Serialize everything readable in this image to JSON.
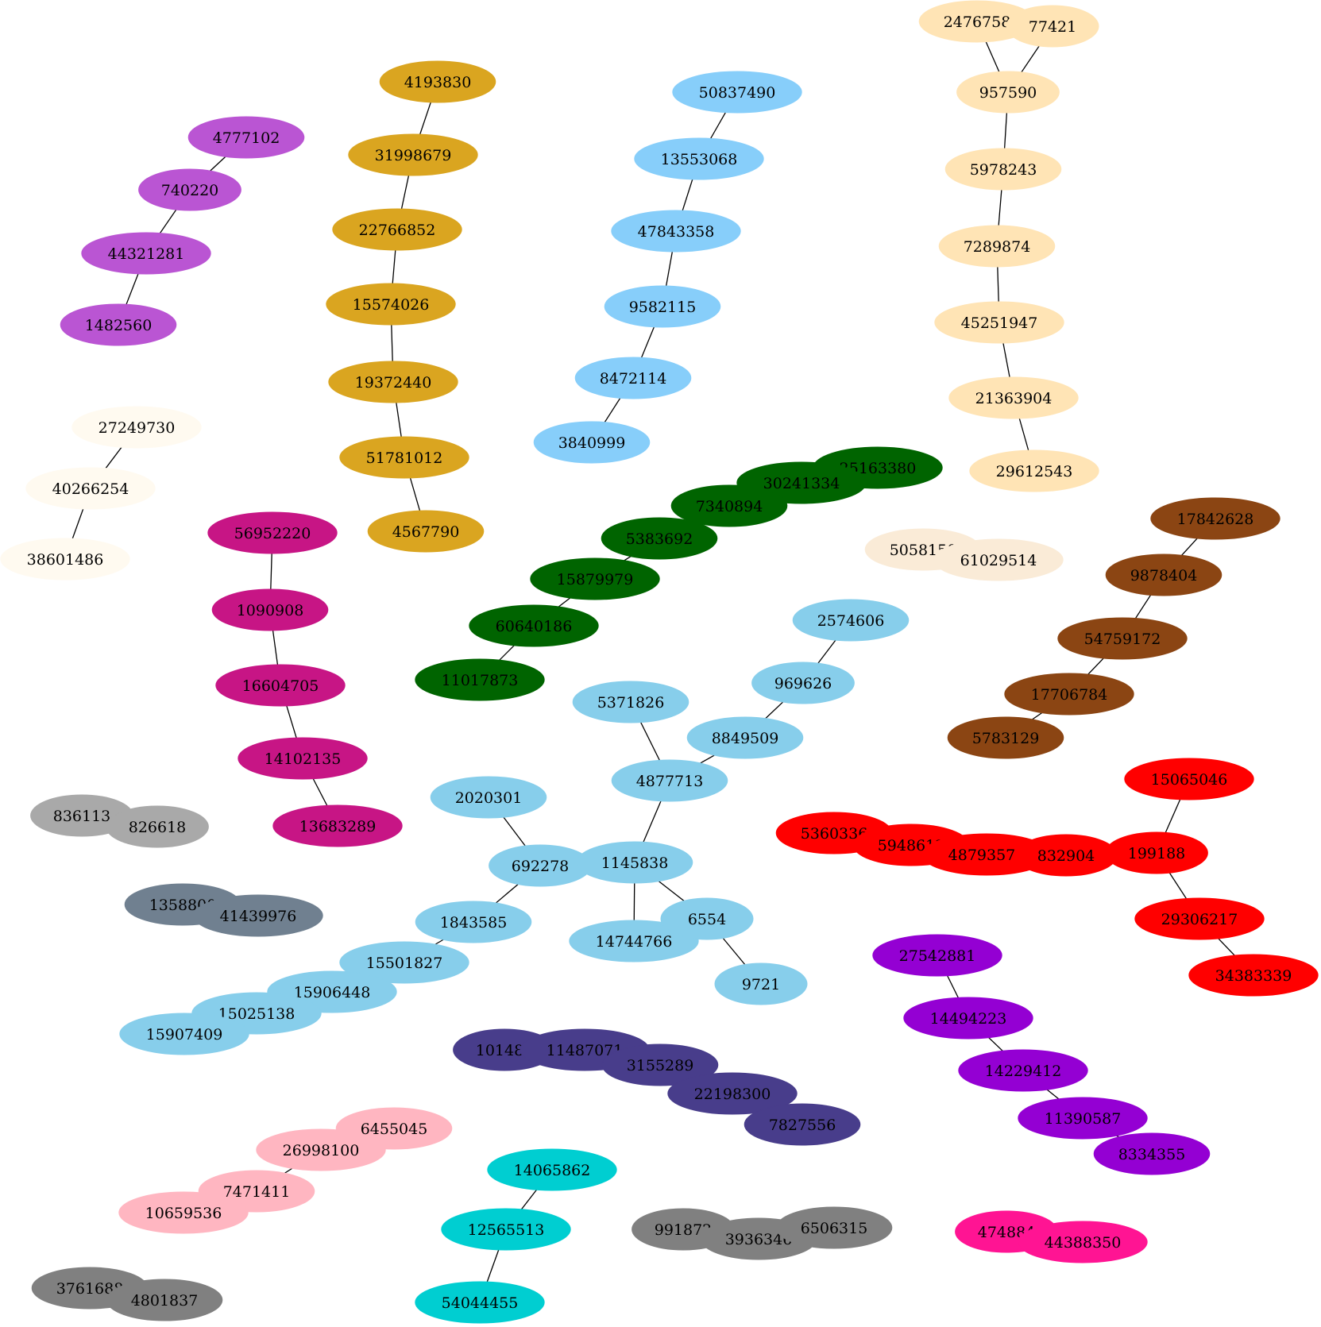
{
  "graph": {
    "components": [
      {
        "color": "#ba55d3",
        "nodes": [
          "4777102",
          "740220",
          "44321281",
          "1482560"
        ]
      },
      {
        "color": "#daa520",
        "nodes": [
          "4193830",
          "31998679",
          "22766852",
          "15574026",
          "19372440",
          "51781012",
          "4567790"
        ]
      },
      {
        "color": "#87cefa",
        "nodes": [
          "50837490",
          "13553068",
          "47843358",
          "9582115",
          "8472114",
          "3840999"
        ]
      },
      {
        "color": "#ffe4b5",
        "nodes": [
          "2476758",
          "77421",
          "957590",
          "5978243",
          "7289874",
          "45251947",
          "21363904",
          "29612543"
        ]
      },
      {
        "color": "#fffaf0",
        "nodes": [
          "27249730",
          "40266254",
          "38601486"
        ]
      },
      {
        "color": "#c71585",
        "nodes": [
          "56952220",
          "1090908",
          "16604705",
          "14102135",
          "13683289"
        ]
      },
      {
        "color": "#006400",
        "nodes": [
          "25163380",
          "30241334",
          "7340894",
          "5383692",
          "15879979",
          "60640186",
          "11017873"
        ]
      },
      {
        "color": "#faebd7",
        "nodes": [
          "5058150",
          "61029514"
        ]
      },
      {
        "color": "#8b4513",
        "nodes": [
          "17842628",
          "9878404",
          "54759172",
          "17706784",
          "5783129"
        ]
      },
      {
        "color": "#87ceeb",
        "nodes": [
          "2574606",
          "969626",
          "8849509",
          "5371826",
          "4877713",
          "2020301",
          "692278",
          "1145838",
          "1843585",
          "14744766",
          "6554",
          "9721",
          "15501827",
          "15906448",
          "15025138",
          "15907409"
        ]
      },
      {
        "color": "#a9a9a9",
        "nodes": [
          "836113",
          "826618"
        ]
      },
      {
        "color": "#708090",
        "nodes": [
          "1358800",
          "41439976"
        ]
      },
      {
        "color": "#ff0000",
        "nodes": [
          "15065046",
          "5360336",
          "5948612",
          "48793574",
          "832904",
          "199188",
          "29306217",
          "34383339"
        ]
      },
      {
        "color": "#9400d3",
        "nodes": [
          "27542881",
          "14494223",
          "14229412",
          "11390587",
          "8334355"
        ]
      },
      {
        "color": "#483d8b",
        "nodes": [
          "101485",
          "11487071",
          "3155289",
          "22198300",
          "7827556"
        ]
      },
      {
        "color": "#ffb6c1",
        "nodes": [
          "6455045",
          "26998100",
          "7471411",
          "10659536"
        ]
      },
      {
        "color": "#00ced1",
        "nodes": [
          "14065862",
          "12565513",
          "54044455"
        ]
      },
      {
        "color": "#808080",
        "nodes": [
          "991872",
          "3936346",
          "6506315",
          "3761688",
          "4801837"
        ]
      },
      {
        "color": "#ff1493",
        "nodes": [
          "474884",
          "44388350"
        ]
      }
    ],
    "edges": [
      [
        "4777102",
        "740220"
      ],
      [
        "740220",
        "44321281"
      ],
      [
        "44321281",
        "1482560"
      ],
      [
        "4193830",
        "31998679"
      ],
      [
        "31998679",
        "22766852"
      ],
      [
        "22766852",
        "15574026"
      ],
      [
        "15574026",
        "19372440"
      ],
      [
        "19372440",
        "51781012"
      ],
      [
        "51781012",
        "4567790"
      ],
      [
        "50837490",
        "13553068"
      ],
      [
        "13553068",
        "47843358"
      ],
      [
        "47843358",
        "9582115"
      ],
      [
        "9582115",
        "8472114"
      ],
      [
        "8472114",
        "3840999"
      ],
      [
        "2476758",
        "957590"
      ],
      [
        "77421",
        "957590"
      ],
      [
        "957590",
        "5978243"
      ],
      [
        "5978243",
        "7289874"
      ],
      [
        "7289874",
        "45251947"
      ],
      [
        "45251947",
        "21363904"
      ],
      [
        "21363904",
        "29612543"
      ],
      [
        "27249730",
        "40266254"
      ],
      [
        "40266254",
        "38601486"
      ],
      [
        "56952220",
        "1090908"
      ],
      [
        "1090908",
        "16604705"
      ],
      [
        "16604705",
        "14102135"
      ],
      [
        "14102135",
        "13683289"
      ],
      [
        "25163380",
        "30241334"
      ],
      [
        "30241334",
        "7340894"
      ],
      [
        "7340894",
        "5383692"
      ],
      [
        "5383692",
        "15879979"
      ],
      [
        "15879979",
        "60640186"
      ],
      [
        "60640186",
        "11017873"
      ],
      [
        "5058150",
        "61029514"
      ],
      [
        "17842628",
        "9878404"
      ],
      [
        "9878404",
        "54759172"
      ],
      [
        "54759172",
        "17706784"
      ],
      [
        "17706784",
        "5783129"
      ],
      [
        "2574606",
        "969626"
      ],
      [
        "969626",
        "8849509"
      ],
      [
        "8849509",
        "4877713"
      ],
      [
        "5371826",
        "4877713"
      ],
      [
        "4877713",
        "1145838"
      ],
      [
        "2020301",
        "692278"
      ],
      [
        "692278",
        "1145838"
      ],
      [
        "692278",
        "1843585"
      ],
      [
        "1145838",
        "14744766"
      ],
      [
        "1145838",
        "6554"
      ],
      [
        "6554",
        "9721"
      ],
      [
        "1843585",
        "15501827"
      ],
      [
        "15501827",
        "15906448"
      ],
      [
        "15906448",
        "15025138"
      ],
      [
        "15025138",
        "15907409"
      ],
      [
        "836113",
        "826618"
      ],
      [
        "1358800",
        "41439976"
      ],
      [
        "15065046",
        "199188"
      ],
      [
        "5360336",
        "5948612"
      ],
      [
        "5948612",
        "48793574"
      ],
      [
        "48793574",
        "832904"
      ],
      [
        "832904",
        "199188"
      ],
      [
        "199188",
        "29306217"
      ],
      [
        "29306217",
        "34383339"
      ],
      [
        "27542881",
        "14494223"
      ],
      [
        "14494223",
        "14229412"
      ],
      [
        "14229412",
        "11390587"
      ],
      [
        "11390587",
        "8334355"
      ],
      [
        "101485",
        "11487071"
      ],
      [
        "11487071",
        "3155289"
      ],
      [
        "3155289",
        "22198300"
      ],
      [
        "22198300",
        "7827556"
      ],
      [
        "6455045",
        "26998100"
      ],
      [
        "26998100",
        "7471411"
      ],
      [
        "7471411",
        "10659536"
      ],
      [
        "14065862",
        "12565513"
      ],
      [
        "12565513",
        "54044455"
      ],
      [
        "991872",
        "3936346"
      ],
      [
        "3936346",
        "6506315"
      ],
      [
        "3761688",
        "4801837"
      ],
      [
        "474884",
        "44388350"
      ]
    ]
  }
}
